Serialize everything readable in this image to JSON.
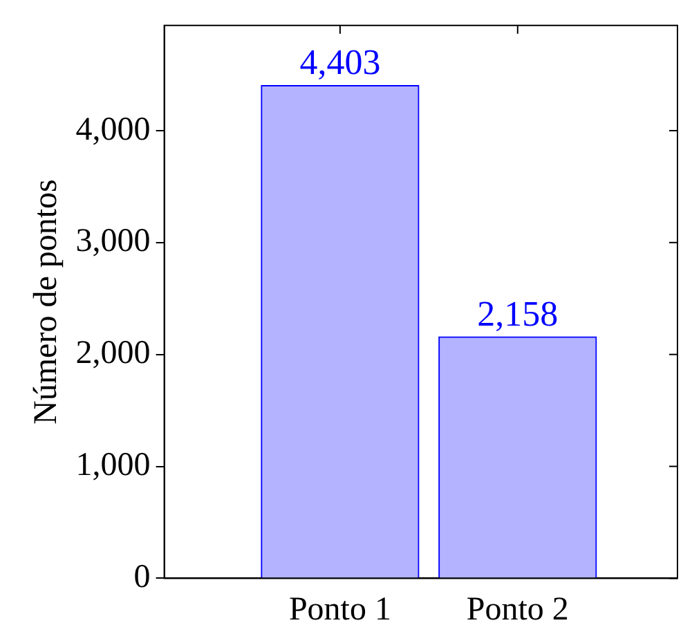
{
  "chart_data": {
    "type": "bar",
    "ylabel": "Número de pontos",
    "categories": [
      "Ponto 1",
      "Ponto 2"
    ],
    "values": [
      4403,
      2158
    ],
    "value_labels": [
      "4,403",
      "2,158"
    ],
    "color": "#b3b3ff",
    "ylim": [
      0,
      4940
    ],
    "yticks": [
      0,
      {
        "value": 1000,
        "label": "1,000"
      },
      {
        "value": 2000,
        "label": "2,000"
      },
      {
        "value": 3000,
        "label": "3,000"
      },
      {
        "value": 4000,
        "label": "4,000"
      }
    ],
    "grid": false,
    "legend": false
  }
}
